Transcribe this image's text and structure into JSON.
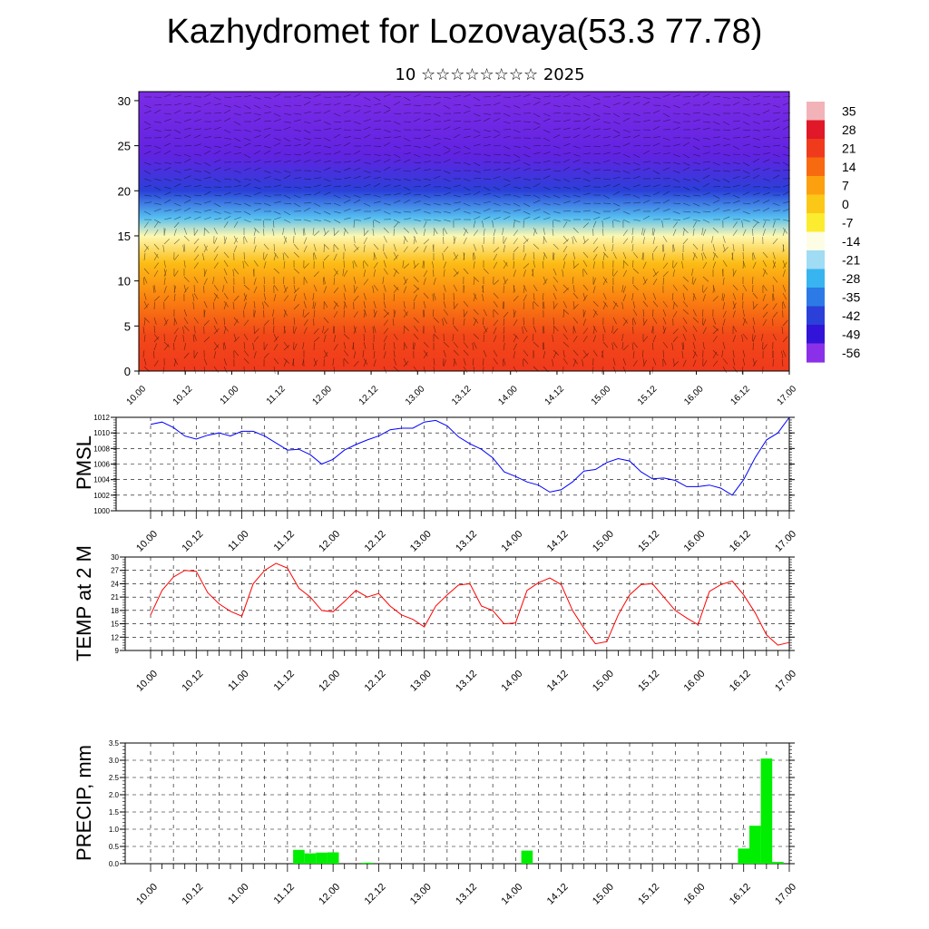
{
  "title": "Kazhydromet for Lozovaya(53.3 77.78)",
  "subtitle": "10 ☆☆☆☆☆☆☆☆ 2025",
  "time_labels": [
    "10.00",
    "10.12",
    "11.00",
    "11.12",
    "12.00",
    "12.12",
    "13.00",
    "13.12",
    "14.00",
    "14.12",
    "15.00",
    "15.12",
    "16.00",
    "16.12",
    "17.00"
  ],
  "chart_data": [
    {
      "type": "heatmap",
      "title": "Kazhydromet for Lozovaya(53.3 77.78)",
      "subtitle": "10 ☆☆☆☆☆☆☆☆ 2025",
      "x_ticks": [
        "10.00",
        "10.12",
        "11.00",
        "11.12",
        "12.00",
        "12.12",
        "13.00",
        "13.12",
        "14.00",
        "14.12",
        "15.00",
        "15.12",
        "16.00",
        "16.12",
        "17.00"
      ],
      "ylim": [
        0,
        31
      ],
      "y_ticks": [
        0,
        5,
        10,
        15,
        20,
        25,
        30
      ],
      "colorbar_labels": [
        "35",
        "28",
        "21",
        "14",
        "7",
        "0",
        "-7",
        "-14",
        "-21",
        "-28",
        "-35",
        "-42",
        "-49",
        "-56"
      ],
      "colorbar_colors": [
        "#f2b3b8",
        "#e01828",
        "#f03a1c",
        "#f86a10",
        "#fca010",
        "#fcc818",
        "#fcec30",
        "#fdfde6",
        "#a0dcf4",
        "#38b4f0",
        "#2c7ae6",
        "#2a40d8",
        "#3214d8",
        "#8a30e8"
      ],
      "level_temperature_profile": [
        {
          "level": 0,
          "temp": 24
        },
        {
          "level": 4,
          "temp": 22
        },
        {
          "level": 8,
          "temp": 14
        },
        {
          "level": 12,
          "temp": 5
        },
        {
          "level": 15,
          "temp": -8
        },
        {
          "level": 17,
          "temp": -22
        },
        {
          "level": 20,
          "temp": -38
        },
        {
          "level": 24,
          "temp": -52
        },
        {
          "level": 31,
          "temp": -56
        }
      ],
      "overlay": "wind barbs"
    },
    {
      "type": "line",
      "ylabel": "PMSL",
      "ylim": [
        1000,
        1012
      ],
      "y_ticks": [
        1000,
        1002,
        1004,
        1006,
        1008,
        1010,
        1012
      ],
      "color": "#0000ff",
      "x_step_hours": 3,
      "x_start_hours": 0,
      "values": [
        1011.1,
        1011.4,
        1010.7,
        1009.6,
        1009.2,
        1009.7,
        1010.0,
        1009.6,
        1010.2,
        1010.2,
        1009.6,
        1008.7,
        1007.8,
        1007.9,
        1007.2,
        1006.0,
        1006.6,
        1007.8,
        1008.5,
        1009.1,
        1009.6,
        1010.4,
        1010.6,
        1010.6,
        1011.4,
        1011.6,
        1010.9,
        1009.5,
        1008.6,
        1007.9,
        1006.8,
        1005.0,
        1004.4,
        1003.7,
        1003.3,
        1002.4,
        1002.7,
        1003.7,
        1005.1,
        1005.3,
        1006.2,
        1006.7,
        1006.4,
        1005.0,
        1004.1,
        1004.2,
        1003.9,
        1003.1,
        1003.1,
        1003.3,
        1002.9,
        1002.0,
        1004.0,
        1006.8,
        1009.1,
        1010.0,
        1012.0
      ]
    },
    {
      "type": "line",
      "ylabel": "TEMP at 2 M",
      "ylim": [
        9,
        30
      ],
      "y_ticks": [
        9,
        12,
        15,
        18,
        21,
        24,
        27,
        30
      ],
      "color": "#ff0000",
      "x_step_hours": 3,
      "x_start_hours": 0,
      "values": [
        17.0,
        22.5,
        25.5,
        27.0,
        26.8,
        22.0,
        19.5,
        17.8,
        16.7,
        24.0,
        27.0,
        28.6,
        27.5,
        23.0,
        21.0,
        18.0,
        17.7,
        20.0,
        22.5,
        21.0,
        21.8,
        19.0,
        17.0,
        16.0,
        14.3,
        19.0,
        21.5,
        23.7,
        24.0,
        19.0,
        18.0,
        15.0,
        15.2,
        22.5,
        24.2,
        25.3,
        23.8,
        18.0,
        14.0,
        10.5,
        11.0,
        17.0,
        21.5,
        23.8,
        24.0,
        21.0,
        18.0,
        16.3,
        14.8,
        22.3,
        23.8,
        24.6,
        21.5,
        17.5,
        12.5,
        10.2,
        10.8
      ]
    },
    {
      "type": "bar",
      "ylabel": "PRECIP, mm",
      "ylim": [
        0,
        3.5
      ],
      "y_ticks": [
        "0.0",
        "0.5",
        "1.0",
        "1.5",
        "2.0",
        "2.5",
        "3.0",
        "3.5"
      ],
      "color": "#00ee00",
      "x_step_hours": 3,
      "x_start_hours": 0,
      "values": [
        0,
        0,
        0,
        0,
        0,
        0,
        0,
        0,
        0,
        0,
        0,
        0,
        0,
        0.4,
        0.3,
        0.32,
        0.33,
        0,
        0,
        0.03,
        0,
        0,
        0,
        0,
        0,
        0,
        0,
        0,
        0,
        0,
        0,
        0,
        0,
        0.38,
        0,
        0,
        0,
        0,
        0,
        0,
        0,
        0,
        0,
        0,
        0,
        0,
        0,
        0,
        0,
        0,
        0,
        0,
        0.44,
        1.1,
        3.05,
        0.05,
        0
      ]
    }
  ]
}
